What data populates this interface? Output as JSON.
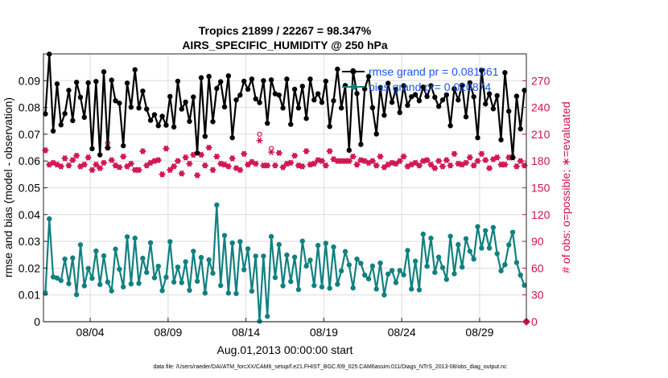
{
  "chart_data": {
    "type": "line",
    "title_line1": "Tropics 21899 / 22267 = 98.347%",
    "title_line2": "AIRS_SPECIFIC_HUMIDITY @ 250 hPa",
    "xlabel": "Aug.01,2013 00:00:00 start",
    "ylabel": "rmse and bias (model - observation)",
    "ylabel2": "# of obs: o=possible; ∗=evaluated",
    "x_ticks": [
      "08/04",
      "08/09",
      "08/14",
      "08/19",
      "08/24",
      "08/29"
    ],
    "x_tick_days": [
      3,
      8,
      13,
      18,
      23,
      28
    ],
    "xlim": [
      0.0,
      31.0
    ],
    "ylim": [
      0.0,
      0.1
    ],
    "y_ticks": [
      "0",
      "0.01",
      "0.02",
      "0.03",
      "0.04",
      "0.05",
      "0.06",
      "0.07",
      "0.08",
      "0.09"
    ],
    "y_tick_values": [
      0,
      0.01,
      0.02,
      0.03,
      0.04,
      0.05,
      0.06,
      0.07,
      0.08,
      0.09
    ],
    "y2lim": [
      0,
      300
    ],
    "y2_ticks": [
      "0",
      "30",
      "60",
      "90",
      "120",
      "150",
      "180",
      "210",
      "240",
      "270"
    ],
    "y2_tick_values": [
      0,
      30,
      60,
      90,
      120,
      150,
      180,
      210,
      240,
      270
    ],
    "legend": [
      {
        "label": "rmse grand pr = 0.081361",
        "color": "#000000"
      },
      {
        "label": "bias grand pr= 0.020874",
        "color": "#128080"
      }
    ],
    "footnote": "data file: /Users/raeder/DAI/ATM_forcXX/CAM6_setup/f.e21.FHIST_BGC.f09_025.CAM6assim.011/Diags_NTrS_2013-08/obs_diag_output.nc",
    "series": [
      {
        "name": "rmse",
        "color": "#000000",
        "x": [
          0.125,
          0.375,
          0.625,
          0.875,
          1.125,
          1.375,
          1.625,
          1.875,
          2.125,
          2.375,
          2.625,
          2.875,
          3.125,
          3.375,
          3.625,
          3.875,
          4.125,
          4.375,
          4.625,
          4.875,
          5.125,
          5.375,
          5.625,
          5.875,
          6.125,
          6.375,
          6.625,
          6.875,
          7.125,
          7.375,
          7.625,
          7.875,
          8.125,
          8.375,
          8.625,
          8.875,
          9.125,
          9.375,
          9.625,
          9.875,
          10.125,
          10.375,
          10.625,
          10.875,
          11.125,
          11.375,
          11.625,
          11.875,
          12.125,
          12.375,
          12.625,
          12.875,
          13.125,
          13.375,
          13.625,
          13.875,
          14.125,
          14.375,
          14.625,
          14.875,
          15.125,
          15.375,
          15.625,
          15.875,
          16.125,
          16.375,
          16.625,
          16.875,
          17.125,
          17.375,
          17.625,
          17.875,
          18.125,
          18.375,
          18.625,
          18.875,
          19.125,
          19.375,
          19.625,
          19.875,
          20.125,
          20.375,
          20.625,
          20.875,
          21.125,
          21.375,
          21.625,
          21.875,
          22.125,
          22.375,
          22.625,
          22.875,
          23.125,
          23.375,
          23.625,
          23.875,
          24.125,
          24.375,
          24.625,
          24.875,
          25.125,
          25.375,
          25.625,
          25.875,
          26.125,
          26.375,
          26.625,
          26.875,
          27.125,
          27.375,
          27.625,
          27.875,
          28.125,
          28.375,
          28.625,
          28.875,
          29.125,
          29.375,
          29.625,
          29.875,
          30.125,
          30.375,
          30.625,
          30.875
        ],
        "values": [
          0.0776,
          0.0999,
          0.0712,
          0.0888,
          0.0735,
          0.0777,
          0.0864,
          0.0751,
          0.0894,
          0.0838,
          0.0763,
          0.0892,
          0.0646,
          0.0897,
          0.0623,
          0.0933,
          0.0649,
          0.0902,
          0.0825,
          0.0816,
          0.0657,
          0.0891,
          0.0801,
          0.0941,
          0.0798,
          0.0861,
          0.0794,
          0.0752,
          0.0773,
          0.0732,
          0.0767,
          0.0734,
          0.0841,
          0.0727,
          0.0898,
          0.0794,
          0.082,
          0.0748,
          0.0839,
          0.063,
          0.0911,
          0.0692,
          0.0916,
          0.0747,
          0.0871,
          0.0896,
          0.0802,
          0.0918,
          0.0687,
          0.0828,
          0.0846,
          0.0898,
          0.0868,
          0.0906,
          0.0832,
          0.0818,
          0.09,
          0.0741,
          0.0903,
          0.0851,
          0.0846,
          0.0798,
          0.0906,
          0.0737,
          0.0868,
          0.0798,
          0.0879,
          0.0759,
          0.0906,
          0.0828,
          0.0851,
          0.0819,
          0.0898,
          0.0729,
          0.0825,
          0.0943,
          0.0798,
          0.0882,
          0.064,
          0.0937,
          0.0852,
          0.0662,
          0.0869,
          0.0916,
          0.0799,
          0.0701,
          0.0874,
          0.0771,
          0.089,
          0.0819,
          0.0867,
          0.0781,
          0.0881,
          0.0808,
          0.084,
          0.0848,
          0.0825,
          0.0876,
          0.0841,
          0.0881,
          0.0838,
          0.0804,
          0.0828,
          0.0847,
          0.0732,
          0.087,
          0.0828,
          0.0883,
          0.0765,
          0.0892,
          0.084,
          0.0687,
          0.0939,
          0.0813,
          0.0851,
          0.0795,
          0.0844,
          0.0679,
          0.093,
          0.0786,
          0.0613,
          0.0842,
          0.072,
          0.0864
        ]
      },
      {
        "name": "bias",
        "color": "#128080",
        "x": [
          0.125,
          0.375,
          0.625,
          0.875,
          1.125,
          1.375,
          1.625,
          1.875,
          2.125,
          2.375,
          2.625,
          2.875,
          3.125,
          3.375,
          3.625,
          3.875,
          4.125,
          4.375,
          4.625,
          4.875,
          5.125,
          5.375,
          5.625,
          5.875,
          6.125,
          6.375,
          6.625,
          6.875,
          7.125,
          7.375,
          7.625,
          7.875,
          8.125,
          8.375,
          8.625,
          8.875,
          9.125,
          9.375,
          9.625,
          9.875,
          10.125,
          10.375,
          10.625,
          10.875,
          11.125,
          11.375,
          11.625,
          11.875,
          12.125,
          12.375,
          12.625,
          12.875,
          13.125,
          13.375,
          13.625,
          13.875,
          14.125,
          14.375,
          14.625,
          14.875,
          15.125,
          15.375,
          15.625,
          15.875,
          16.125,
          16.375,
          16.625,
          16.875,
          17.125,
          17.375,
          17.625,
          17.875,
          18.125,
          18.375,
          18.625,
          18.875,
          19.125,
          19.375,
          19.625,
          19.875,
          20.125,
          20.375,
          20.625,
          20.875,
          21.125,
          21.375,
          21.625,
          21.875,
          22.125,
          22.375,
          22.625,
          22.875,
          23.125,
          23.375,
          23.625,
          23.875,
          24.125,
          24.375,
          24.625,
          24.875,
          25.125,
          25.375,
          25.625,
          25.875,
          26.125,
          26.375,
          26.625,
          26.875,
          27.125,
          27.375,
          27.625,
          27.875,
          28.125,
          28.375,
          28.625,
          28.875,
          29.125,
          29.375,
          29.625,
          29.875,
          30.125,
          30.375,
          30.625,
          30.875
        ],
        "values": [
          0.0107,
          0.0384,
          0.0167,
          0.0163,
          0.0154,
          0.0234,
          0.0142,
          0.0238,
          0.0101,
          0.0287,
          0.0134,
          0.0199,
          0.0162,
          0.0264,
          0.0139,
          0.0246,
          0.0148,
          0.0115,
          0.0271,
          0.0196,
          0.013,
          0.0317,
          0.0141,
          0.0312,
          0.0143,
          0.0237,
          0.0184,
          0.0295,
          0.0164,
          0.0207,
          0.0116,
          0.0166,
          0.0299,
          0.0148,
          0.0204,
          0.0146,
          0.0224,
          0.0117,
          0.0263,
          0.0151,
          0.024,
          0.0107,
          0.0231,
          0.0181,
          0.0436,
          0.0135,
          0.0322,
          0.0107,
          0.0294,
          0.0105,
          0.0299,
          0.0194,
          0.0272,
          0.0114,
          0.0245,
          0.0002,
          0.0245,
          0.002,
          0.0318,
          0.0165,
          0.0288,
          0.0134,
          0.0249,
          0.015,
          0.0241,
          0.012,
          0.0301,
          0.0208,
          0.023,
          0.0135,
          0.0285,
          0.013,
          0.0293,
          0.0125,
          0.0279,
          0.014,
          0.019,
          0.0262,
          0.0212,
          0.0126,
          0.0234,
          0.0218,
          0.0174,
          0.016,
          0.0208,
          0.0122,
          0.0219,
          0.01,
          0.0178,
          0.0191,
          0.0146,
          0.0191,
          0.0175,
          0.0266,
          0.0122,
          0.0226,
          0.0119,
          0.0327,
          0.0207,
          0.0312,
          0.0184,
          0.0241,
          0.0202,
          0.0158,
          0.0319,
          0.0179,
          0.0288,
          0.0204,
          0.031,
          0.0263,
          0.0234,
          0.0355,
          0.0275,
          0.034,
          0.0275,
          0.0352,
          0.0254,
          0.019,
          0.0213,
          0.0287,
          0.0334,
          0.0221,
          0.0174,
          0.0136
        ]
      },
      {
        "name": "obs possible",
        "color": "#d0104c",
        "marker": "o",
        "axis": "right",
        "x": [
          0.125,
          0.375,
          0.625,
          0.875,
          1.125,
          1.375,
          1.625,
          1.875,
          2.125,
          2.375,
          2.625,
          2.875,
          3.125,
          3.375,
          3.625,
          3.875,
          4.125,
          4.375,
          4.625,
          4.875,
          5.125,
          5.375,
          5.625,
          5.875,
          6.125,
          6.375,
          6.625,
          6.875,
          7.125,
          7.375,
          7.625,
          7.875,
          8.125,
          8.375,
          8.625,
          8.875,
          9.125,
          9.375,
          9.625,
          9.875,
          10.125,
          10.375,
          10.625,
          10.875,
          11.125,
          11.375,
          11.625,
          11.875,
          12.125,
          12.375,
          12.625,
          12.875,
          13.125,
          13.375,
          13.625,
          13.875,
          14.125,
          14.375,
          14.625,
          14.875,
          15.125,
          15.375,
          15.625,
          15.875,
          16.125,
          16.375,
          16.625,
          16.875,
          17.125,
          17.375,
          17.625,
          17.875,
          18.125,
          18.375,
          18.625,
          18.875,
          19.125,
          19.375,
          19.625,
          19.875,
          20.125,
          20.375,
          20.625,
          20.875,
          21.125,
          21.375,
          21.625,
          21.875,
          22.125,
          22.375,
          22.625,
          22.875,
          23.125,
          23.375,
          23.625,
          23.875,
          24.125,
          24.375,
          24.625,
          24.875,
          25.125,
          25.375,
          25.625,
          25.875,
          26.125,
          26.375,
          26.625,
          26.875,
          27.125,
          27.375,
          27.625,
          27.875,
          28.125,
          28.375,
          28.625,
          28.875,
          29.125,
          29.375,
          29.625,
          29.875,
          30.125,
          30.375,
          30.625,
          30.875
        ],
        "values": [
          192,
          176,
          178,
          176,
          174,
          183,
          175,
          181,
          186,
          174,
          176,
          184,
          170,
          176,
          172,
          178,
          200,
          181,
          175,
          173,
          185,
          174,
          177,
          170,
          170,
          191,
          175,
          178,
          180,
          181,
          165,
          194,
          170,
          174,
          180,
          166,
          184,
          177,
          187,
          164,
          187,
          175,
          195,
          170,
          185,
          177,
          176,
          174,
          183,
          172,
          170,
          188,
          176,
          179,
          177,
          210,
          175,
          175,
          194,
          175,
          189,
          173,
          177,
          178,
          186,
          175,
          174,
          191,
          176,
          177,
          181,
          180,
          175,
          191,
          182,
          180,
          180,
          180,
          180,
          185,
          176,
          181,
          180,
          178,
          180,
          175,
          185,
          173,
          176,
          178,
          177,
          180,
          185,
          174,
          176,
          178,
          175,
          180,
          181,
          176,
          172,
          180,
          174,
          181,
          175,
          188,
          177,
          176,
          178,
          184,
          175,
          180,
          188,
          181,
          172,
          182,
          184,
          176,
          176,
          184,
          184,
          174,
          180,
          175
        ]
      },
      {
        "name": "obs evaluated",
        "color": "#d0104c",
        "marker": "*",
        "axis": "right",
        "x": [
          0.125,
          0.375,
          0.625,
          0.875,
          1.125,
          1.375,
          1.625,
          1.875,
          2.125,
          2.375,
          2.625,
          2.875,
          3.125,
          3.375,
          3.625,
          3.875,
          4.125,
          4.375,
          4.625,
          4.875,
          5.125,
          5.375,
          5.625,
          5.875,
          6.125,
          6.375,
          6.625,
          6.875,
          7.125,
          7.375,
          7.625,
          7.875,
          8.125,
          8.375,
          8.625,
          8.875,
          9.125,
          9.375,
          9.625,
          9.875,
          10.125,
          10.375,
          10.625,
          10.875,
          11.125,
          11.375,
          11.625,
          11.875,
          12.125,
          12.375,
          12.625,
          12.875,
          13.125,
          13.375,
          13.625,
          13.875,
          14.125,
          14.375,
          14.625,
          14.875,
          15.125,
          15.375,
          15.625,
          15.875,
          16.125,
          16.375,
          16.625,
          16.875,
          17.125,
          17.375,
          17.625,
          17.875,
          18.125,
          18.375,
          18.625,
          18.875,
          19.125,
          19.375,
          19.625,
          19.875,
          20.125,
          20.375,
          20.625,
          20.875,
          21.125,
          21.375,
          21.625,
          21.875,
          22.125,
          22.375,
          22.625,
          22.875,
          23.125,
          23.375,
          23.625,
          23.875,
          24.125,
          24.375,
          24.625,
          24.875,
          25.125,
          25.375,
          25.625,
          25.875,
          26.125,
          26.375,
          26.625,
          26.875,
          27.125,
          27.375,
          27.625,
          27.875,
          28.125,
          28.375,
          28.625,
          28.875,
          29.125,
          29.375,
          29.625,
          29.875,
          30.125,
          30.375,
          30.625,
          30.875
        ],
        "values": [
          192,
          176,
          178,
          176,
          174,
          183,
          175,
          181,
          186,
          174,
          176,
          184,
          170,
          176,
          172,
          178,
          195,
          181,
          175,
          173,
          185,
          174,
          177,
          170,
          170,
          191,
          175,
          178,
          180,
          181,
          165,
          194,
          170,
          174,
          180,
          166,
          184,
          177,
          187,
          164,
          187,
          175,
          195,
          170,
          185,
          177,
          176,
          174,
          183,
          172,
          170,
          188,
          176,
          179,
          177,
          203,
          175,
          175,
          190,
          175,
          189,
          173,
          177,
          178,
          186,
          175,
          174,
          191,
          176,
          177,
          181,
          180,
          175,
          191,
          182,
          180,
          180,
          180,
          180,
          185,
          176,
          181,
          180,
          178,
          180,
          175,
          185,
          173,
          176,
          178,
          177,
          180,
          185,
          174,
          176,
          178,
          175,
          180,
          181,
          176,
          172,
          180,
          174,
          181,
          175,
          188,
          177,
          176,
          178,
          184,
          175,
          180,
          188,
          181,
          172,
          182,
          184,
          176,
          176,
          184,
          184,
          174,
          180,
          175
        ]
      }
    ]
  }
}
